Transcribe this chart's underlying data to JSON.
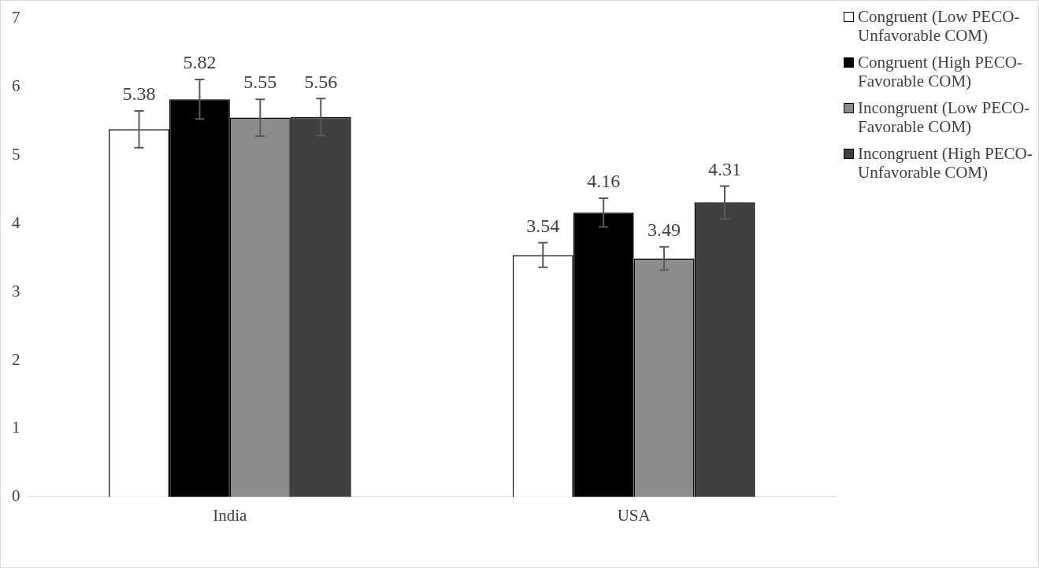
{
  "chart_data": {
    "type": "bar",
    "categories": [
      "India",
      "USA"
    ],
    "series": [
      {
        "name": "Congruent (Low PECO-Unfavorable COM)",
        "color": "#ffffff",
        "values": [
          5.38,
          3.54
        ],
        "errors": [
          0.27,
          0.18
        ]
      },
      {
        "name": "Congruent (High PECO-Favorable COM)",
        "color": "#000000",
        "values": [
          5.82,
          4.16
        ],
        "errors": [
          0.29,
          0.21
        ]
      },
      {
        "name": "Incongruent (Low PECO-Favorable COM)",
        "color": "#8c8c8c",
        "values": [
          5.55,
          3.49
        ],
        "errors": [
          0.27,
          0.17
        ]
      },
      {
        "name": "Incongruent (High PECO-Unfavorable COM)",
        "color": "#404040",
        "values": [
          5.56,
          4.31
        ],
        "errors": [
          0.27,
          0.24
        ]
      }
    ],
    "ylim": [
      0,
      7
    ],
    "yticks": [
      0,
      1,
      2,
      3,
      4,
      5,
      6,
      7
    ],
    "grid": false,
    "legend": "right",
    "data_labels": true
  }
}
